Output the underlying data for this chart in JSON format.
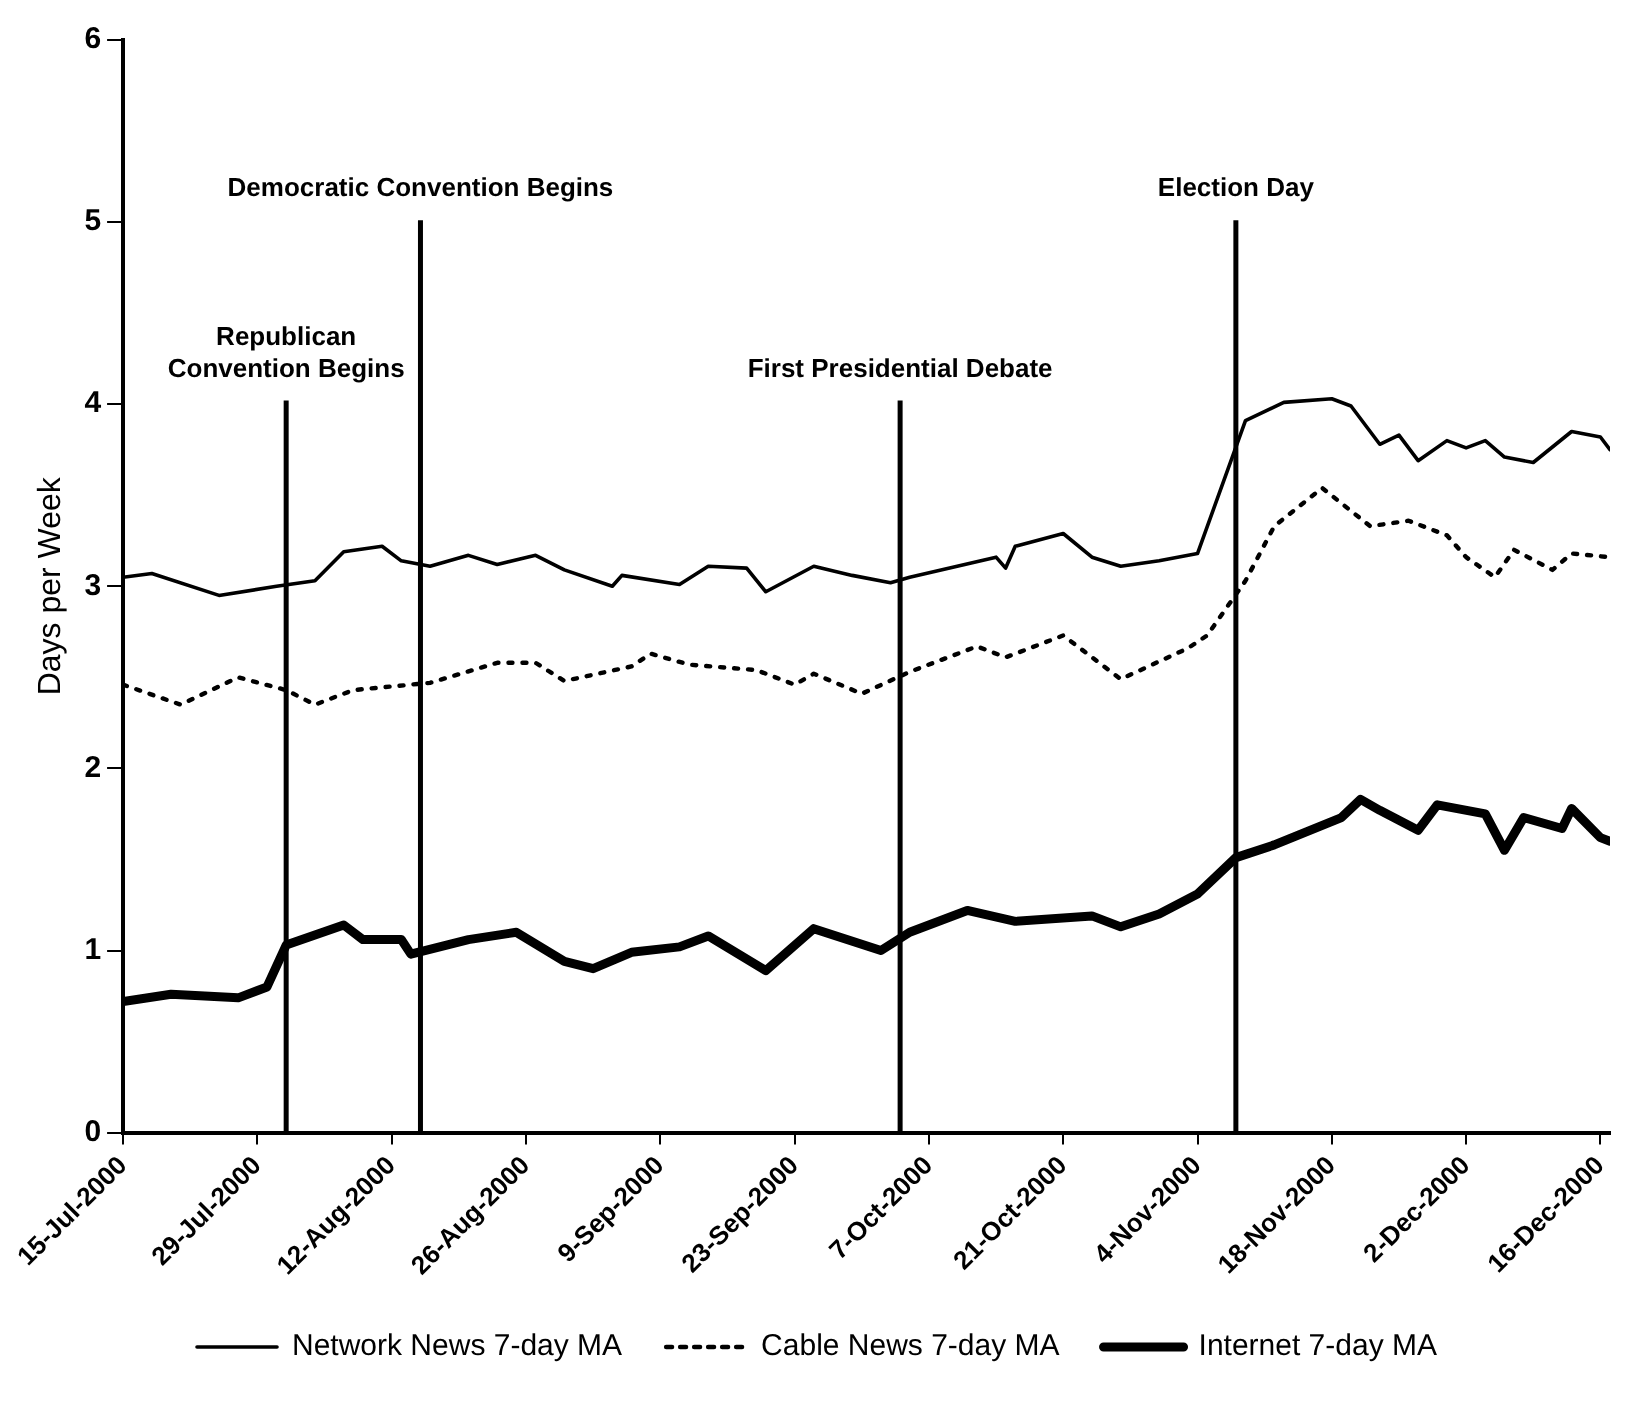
{
  "chart_data": {
    "type": "line",
    "ylabel": "Days per Week",
    "xlim": [
      "2000-07-15",
      "2000-12-17"
    ],
    "xticks": [
      {
        "value": "2000-07-15",
        "label": "15-Jul-2000"
      },
      {
        "value": "2000-07-29",
        "label": "29-Jul-2000"
      },
      {
        "value": "2000-08-12",
        "label": "12-Aug-2000"
      },
      {
        "value": "2000-08-26",
        "label": "26-Aug-2000"
      },
      {
        "value": "2000-09-09",
        "label": "9-Sep-2000"
      },
      {
        "value": "2000-09-23",
        "label": "23-Sep-2000"
      },
      {
        "value": "2000-10-07",
        "label": "7-Oct-2000"
      },
      {
        "value": "2000-10-21",
        "label": "21-Oct-2000"
      },
      {
        "value": "2000-11-04",
        "label": "4-Nov-2000"
      },
      {
        "value": "2000-11-18",
        "label": "18-Nov-2000"
      },
      {
        "value": "2000-12-02",
        "label": "2-Dec-2000"
      },
      {
        "value": "2000-12-16",
        "label": "16-Dec-2000"
      }
    ],
    "ylim": [
      0,
      6
    ],
    "yticks": [
      0,
      1,
      2,
      3,
      4,
      5,
      6
    ],
    "grid": false,
    "legend": "bottom",
    "marker": "none",
    "ref_lines": [
      {
        "axis": "x",
        "value": "2000-08-01",
        "label": "Republican Convention Begins"
      },
      {
        "axis": "x",
        "value": "2000-08-15",
        "label": "Democratic Convention Begins"
      },
      {
        "axis": "x",
        "value": "2000-10-04",
        "label": "First Presidential Debate"
      },
      {
        "axis": "x",
        "value": "2000-11-08",
        "label": "Election Day"
      }
    ],
    "series": [
      {
        "name": "Network News 7-day MA",
        "color": "#000000",
        "line_style": "solid",
        "x": [
          "2000-07-15",
          "2000-07-18",
          "2000-07-25",
          "2000-07-31",
          "2000-08-04",
          "2000-08-07",
          "2000-08-11",
          "2000-08-13",
          "2000-08-16",
          "2000-08-20",
          "2000-08-23",
          "2000-08-27",
          "2000-08-30",
          "2000-09-04",
          "2000-09-05",
          "2000-09-11",
          "2000-09-14",
          "2000-09-18",
          "2000-09-20",
          "2000-09-25",
          "2000-09-29",
          "2000-10-03",
          "2000-10-05",
          "2000-10-14",
          "2000-10-15",
          "2000-10-16",
          "2000-10-21",
          "2000-10-24",
          "2000-10-27",
          "2000-10-31",
          "2000-11-04",
          "2000-11-09",
          "2000-11-13",
          "2000-11-18",
          "2000-11-20",
          "2000-11-23",
          "2000-11-25",
          "2000-11-27",
          "2000-11-30",
          "2000-12-02",
          "2000-12-04",
          "2000-12-06",
          "2000-12-09",
          "2000-12-13",
          "2000-12-16",
          "2000-12-17"
        ],
        "values": [
          3.05,
          3.07,
          2.95,
          3.0,
          3.03,
          3.19,
          3.22,
          3.14,
          3.11,
          3.17,
          3.12,
          3.17,
          3.09,
          3.0,
          3.06,
          3.01,
          3.11,
          3.1,
          2.97,
          3.11,
          3.06,
          3.02,
          3.05,
          3.16,
          3.1,
          3.22,
          3.29,
          3.16,
          3.11,
          3.14,
          3.18,
          3.91,
          4.01,
          4.03,
          3.99,
          3.78,
          3.83,
          3.69,
          3.8,
          3.76,
          3.8,
          3.71,
          3.68,
          3.85,
          3.82,
          3.75
        ]
      },
      {
        "name": "Cable News 7-day MA",
        "color": "#000000",
        "line_style": "dotted",
        "x": [
          "2000-07-15",
          "2000-07-21",
          "2000-07-27",
          "2000-08-01",
          "2000-08-04",
          "2000-08-08",
          "2000-08-16",
          "2000-08-23",
          "2000-08-27",
          "2000-08-30",
          "2000-09-06",
          "2000-09-08",
          "2000-09-12",
          "2000-09-19",
          "2000-09-23",
          "2000-09-25",
          "2000-09-30",
          "2000-10-05",
          "2000-10-12",
          "2000-10-15",
          "2000-10-21",
          "2000-10-27",
          "2000-11-03",
          "2000-11-05",
          "2000-11-09",
          "2000-11-12",
          "2000-11-17",
          "2000-11-22",
          "2000-11-26",
          "2000-11-30",
          "2000-12-02",
          "2000-12-05",
          "2000-12-07",
          "2000-12-11",
          "2000-12-13",
          "2000-12-17"
        ],
        "values": [
          2.46,
          2.35,
          2.5,
          2.43,
          2.35,
          2.43,
          2.47,
          2.58,
          2.58,
          2.48,
          2.56,
          2.63,
          2.57,
          2.54,
          2.46,
          2.52,
          2.41,
          2.53,
          2.67,
          2.61,
          2.73,
          2.49,
          2.66,
          2.73,
          3.03,
          3.33,
          3.54,
          3.33,
          3.36,
          3.28,
          3.16,
          3.05,
          3.2,
          3.09,
          3.18,
          3.16
        ]
      },
      {
        "name": "Internet 7-day MA",
        "color": "#000000",
        "line_style": "solid",
        "x": [
          "2000-07-15",
          "2000-07-20",
          "2000-07-27",
          "2000-07-30",
          "2000-08-01",
          "2000-08-07",
          "2000-08-09",
          "2000-08-13",
          "2000-08-14",
          "2000-08-20",
          "2000-08-25",
          "2000-08-30",
          "2000-09-02",
          "2000-09-06",
          "2000-09-11",
          "2000-09-14",
          "2000-09-20",
          "2000-09-25",
          "2000-10-02",
          "2000-10-05",
          "2000-10-11",
          "2000-10-16",
          "2000-10-24",
          "2000-10-27",
          "2000-10-31",
          "2000-11-04",
          "2000-11-08",
          "2000-11-12",
          "2000-11-19",
          "2000-11-21",
          "2000-11-23",
          "2000-11-27",
          "2000-11-29",
          "2000-12-04",
          "2000-12-06",
          "2000-12-08",
          "2000-12-12",
          "2000-12-13",
          "2000-12-16",
          "2000-12-17"
        ],
        "values": [
          0.72,
          0.76,
          0.74,
          0.8,
          1.03,
          1.14,
          1.06,
          1.06,
          0.98,
          1.06,
          1.1,
          0.94,
          0.9,
          0.99,
          1.02,
          1.08,
          0.89,
          1.12,
          1.0,
          1.1,
          1.22,
          1.16,
          1.19,
          1.13,
          1.2,
          1.31,
          1.51,
          1.58,
          1.73,
          1.83,
          1.77,
          1.66,
          1.8,
          1.75,
          1.55,
          1.73,
          1.67,
          1.78,
          1.62,
          1.6
        ]
      }
    ]
  }
}
